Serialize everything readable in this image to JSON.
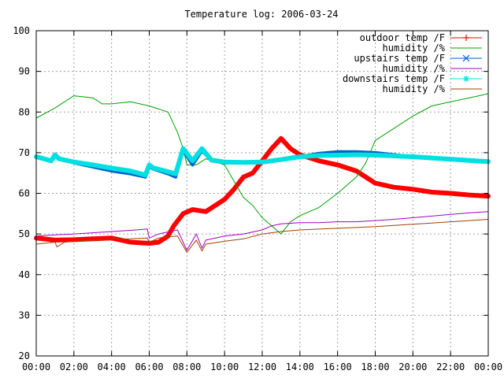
{
  "chart_data": {
    "type": "line",
    "title": "Temperature log: 2006-03-24",
    "xlabel": "",
    "ylabel": "",
    "x_range_hours": [
      0,
      24
    ],
    "ylim": [
      20,
      100
    ],
    "grid": true,
    "legend_position": "top-right",
    "x_ticks": [
      "00:00",
      "02:00",
      "04:00",
      "06:00",
      "08:00",
      "10:00",
      "12:00",
      "14:00",
      "16:00",
      "18:00",
      "20:00",
      "22:00",
      "00:00"
    ],
    "y_ticks": [
      20,
      30,
      40,
      50,
      60,
      70,
      80,
      90,
      100
    ],
    "series": [
      {
        "name": "outdoor temp /F",
        "color": "#ff0000",
        "marker": "plus",
        "width": 6,
        "points": [
          [
            0,
            49
          ],
          [
            1,
            48.5
          ],
          [
            2,
            48.6
          ],
          [
            3,
            48.8
          ],
          [
            4,
            49
          ],
          [
            5,
            48
          ],
          [
            6,
            47.7
          ],
          [
            6.5,
            48
          ],
          [
            7,
            49.5
          ],
          [
            7.3,
            52
          ],
          [
            7.8,
            55
          ],
          [
            8.3,
            56
          ],
          [
            9,
            55.5
          ],
          [
            9.5,
            57
          ],
          [
            10,
            58.5
          ],
          [
            10.5,
            61
          ],
          [
            11,
            64
          ],
          [
            11.5,
            65
          ],
          [
            12,
            68
          ],
          [
            12.5,
            71
          ],
          [
            13,
            73.5
          ],
          [
            13.5,
            71
          ],
          [
            14,
            69.5
          ],
          [
            15,
            68
          ],
          [
            16,
            67
          ],
          [
            17,
            65.5
          ],
          [
            17.5,
            64
          ],
          [
            18,
            62.5
          ],
          [
            19,
            61.5
          ],
          [
            20,
            61
          ],
          [
            21,
            60.3
          ],
          [
            22,
            60
          ],
          [
            23,
            59.6
          ],
          [
            24,
            59.3
          ]
        ]
      },
      {
        "name": "humidity /%",
        "color": "#00a000",
        "marker": "none",
        "width": 1,
        "points": [
          [
            0,
            78.5
          ],
          [
            1,
            81
          ],
          [
            2,
            84
          ],
          [
            3,
            83.5
          ],
          [
            3.5,
            82
          ],
          [
            4,
            82
          ],
          [
            5,
            82.5
          ],
          [
            6,
            81.5
          ],
          [
            7,
            80
          ],
          [
            7.5,
            75
          ],
          [
            7.8,
            71
          ],
          [
            8,
            67
          ],
          [
            8.5,
            67
          ],
          [
            9,
            68.5
          ],
          [
            10,
            67
          ],
          [
            11,
            59
          ],
          [
            11.5,
            57
          ],
          [
            12,
            54
          ],
          [
            12.5,
            52
          ],
          [
            13,
            50
          ],
          [
            13.5,
            53
          ],
          [
            14,
            54.5
          ],
          [
            15,
            56.5
          ],
          [
            16,
            60
          ],
          [
            17,
            64
          ],
          [
            17.5,
            67.5
          ],
          [
            18,
            73
          ],
          [
            19,
            76
          ],
          [
            20,
            79
          ],
          [
            21,
            81.5
          ],
          [
            22,
            82.5
          ],
          [
            23,
            83.5
          ],
          [
            24,
            84.5
          ]
        ]
      },
      {
        "name": "upstairs temp /F",
        "color": "#0060d0",
        "marker": "x",
        "width": 4,
        "points": [
          [
            0,
            69
          ],
          [
            0.8,
            68
          ],
          [
            1,
            69
          ],
          [
            1.2,
            68.5
          ],
          [
            2,
            67.5
          ],
          [
            3,
            66.5
          ],
          [
            4,
            65.5
          ],
          [
            5,
            64.8
          ],
          [
            5.8,
            64
          ],
          [
            6,
            66.5
          ],
          [
            6.2,
            66
          ],
          [
            7,
            64.8
          ],
          [
            7.4,
            64
          ],
          [
            7.8,
            70.5
          ],
          [
            8.3,
            67
          ],
          [
            8.8,
            70.5
          ],
          [
            9.3,
            68
          ],
          [
            10,
            67.5
          ],
          [
            11,
            67.5
          ],
          [
            12,
            67.5
          ],
          [
            13,
            68.2
          ],
          [
            14,
            69
          ],
          [
            15,
            69.8
          ],
          [
            16,
            70.2
          ],
          [
            17,
            70.2
          ],
          [
            18,
            70
          ],
          [
            19,
            69.5
          ],
          [
            20,
            69
          ],
          [
            21,
            68.6
          ],
          [
            22,
            68.3
          ],
          [
            23,
            68
          ],
          [
            24,
            67.8
          ]
        ]
      },
      {
        "name": "humidity /%",
        "color": "#a000c0",
        "marker": "none",
        "width": 1,
        "points": [
          [
            0,
            49.5
          ],
          [
            1,
            49.8
          ],
          [
            2,
            50
          ],
          [
            3,
            50.3
          ],
          [
            4,
            50.6
          ],
          [
            5,
            50.9
          ],
          [
            5.9,
            51.2
          ],
          [
            6,
            49
          ],
          [
            6.5,
            50
          ],
          [
            7,
            50.5
          ],
          [
            7.5,
            51
          ],
          [
            8,
            46
          ],
          [
            8.5,
            50
          ],
          [
            8.8,
            46.5
          ],
          [
            9,
            48.5
          ],
          [
            10,
            49.5
          ],
          [
            11,
            50
          ],
          [
            12,
            51
          ],
          [
            12.5,
            52
          ],
          [
            13,
            52.5
          ],
          [
            14,
            52.8
          ],
          [
            15,
            52.8
          ],
          [
            16,
            53
          ],
          [
            17,
            53
          ],
          [
            18,
            53.3
          ],
          [
            19,
            53.6
          ],
          [
            20,
            54
          ],
          [
            21,
            54.4
          ],
          [
            22,
            54.8
          ],
          [
            23,
            55.2
          ],
          [
            24,
            55.5
          ]
        ]
      },
      {
        "name": "downstairs temp /F",
        "color": "#00e0e0",
        "marker": "star",
        "width": 6,
        "points": [
          [
            0,
            69
          ],
          [
            0.8,
            68
          ],
          [
            1,
            69.5
          ],
          [
            1.2,
            68.5
          ],
          [
            2,
            67.7
          ],
          [
            3,
            67
          ],
          [
            4,
            66.2
          ],
          [
            5,
            65.5
          ],
          [
            5.8,
            64.5
          ],
          [
            6,
            67
          ],
          [
            6.2,
            66.3
          ],
          [
            7,
            65.3
          ],
          [
            7.4,
            64.8
          ],
          [
            7.8,
            71
          ],
          [
            8.3,
            68
          ],
          [
            8.8,
            71
          ],
          [
            9.3,
            68.2
          ],
          [
            10,
            67.7
          ],
          [
            11,
            67.6
          ],
          [
            12,
            67.7
          ],
          [
            13,
            68.3
          ],
          [
            14,
            69
          ],
          [
            15,
            69.3
          ],
          [
            16,
            69.4
          ],
          [
            17,
            69.5
          ],
          [
            18,
            69.4
          ],
          [
            19,
            69.2
          ],
          [
            20,
            69
          ],
          [
            21,
            68.7
          ],
          [
            22,
            68.4
          ],
          [
            23,
            68.1
          ],
          [
            24,
            67.8
          ]
        ]
      },
      {
        "name": "humidity /%",
        "color": "#a04000",
        "marker": "none",
        "width": 1,
        "points": [
          [
            0,
            47.5
          ],
          [
            1,
            48
          ],
          [
            1.1,
            46.8
          ],
          [
            1.5,
            48
          ],
          [
            2,
            48.2
          ],
          [
            3,
            48.5
          ],
          [
            4,
            48.7
          ],
          [
            5,
            48.8
          ],
          [
            5.9,
            49
          ],
          [
            6,
            48
          ],
          [
            6.5,
            49
          ],
          [
            7,
            49.3
          ],
          [
            7.5,
            49.5
          ],
          [
            8,
            45.5
          ],
          [
            8.5,
            48.5
          ],
          [
            8.8,
            45.8
          ],
          [
            9,
            47.5
          ],
          [
            10,
            48.2
          ],
          [
            11,
            48.8
          ],
          [
            12,
            50
          ],
          [
            13,
            50.6
          ],
          [
            14,
            51
          ],
          [
            15,
            51.2
          ],
          [
            16,
            51.4
          ],
          [
            17,
            51.6
          ],
          [
            18,
            51.8
          ],
          [
            19,
            52.1
          ],
          [
            20,
            52.4
          ],
          [
            21,
            52.7
          ],
          [
            22,
            53
          ],
          [
            23,
            53.3
          ],
          [
            24,
            53.6
          ]
        ]
      }
    ]
  }
}
